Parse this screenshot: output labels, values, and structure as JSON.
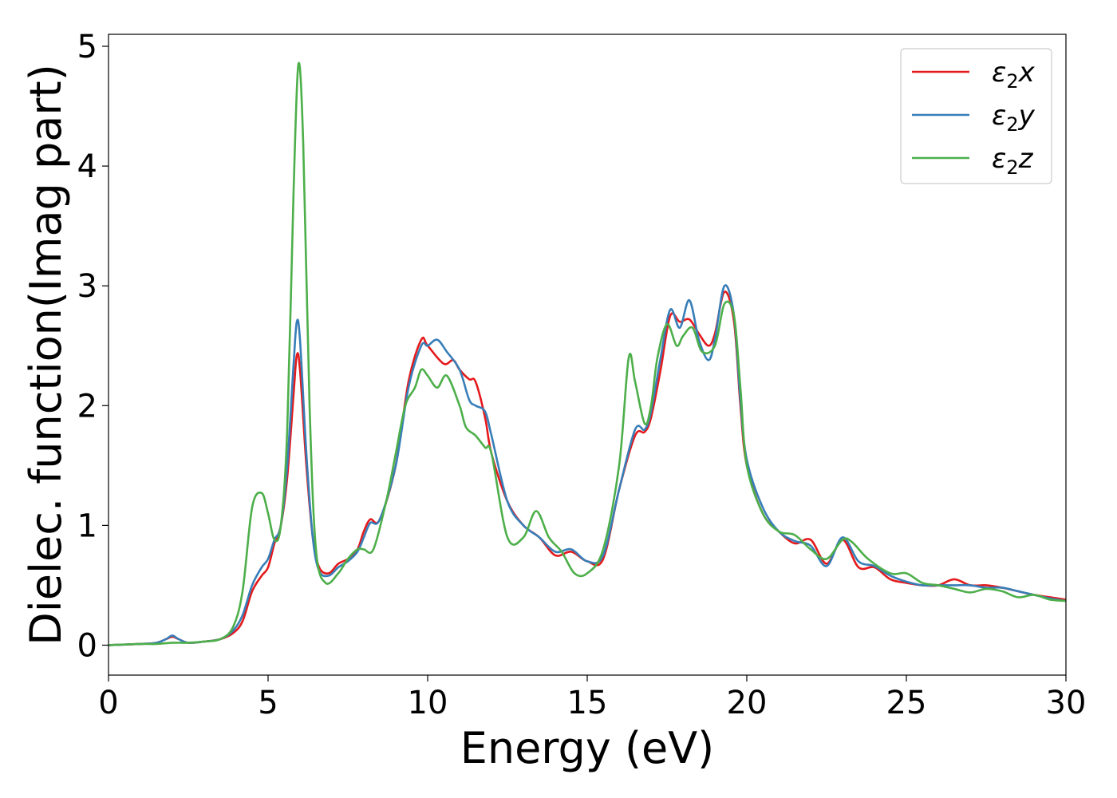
{
  "chart_data": {
    "type": "line",
    "title": "",
    "xlabel": "Energy (eV)",
    "ylabel": "Dielec. function(Imag part)",
    "xlim": [
      0,
      30
    ],
    "ylim": [
      -0.25,
      5.1
    ],
    "xticks": [
      0,
      5,
      10,
      15,
      20,
      25,
      30
    ],
    "yticks": [
      0,
      1,
      2,
      3,
      4,
      5
    ],
    "grid": false,
    "legend_position": "top-right",
    "series": [
      {
        "name": "ε2x",
        "legend_base": "ε",
        "legend_sub": "2",
        "legend_suffix": "x",
        "color": "#e41a1c",
        "points": [
          [
            0,
            0
          ],
          [
            1,
            0.01
          ],
          [
            1.5,
            0.02
          ],
          [
            1.8,
            0.05
          ],
          [
            2,
            0.07
          ],
          [
            2.2,
            0.05
          ],
          [
            2.5,
            0.02
          ],
          [
            3,
            0.03
          ],
          [
            3.5,
            0.05
          ],
          [
            3.9,
            0.1
          ],
          [
            4.2,
            0.2
          ],
          [
            4.5,
            0.45
          ],
          [
            4.8,
            0.58
          ],
          [
            5.0,
            0.65
          ],
          [
            5.2,
            0.85
          ],
          [
            5.4,
            1.0
          ],
          [
            5.6,
            1.4
          ],
          [
            5.8,
            2.1
          ],
          [
            5.9,
            2.42
          ],
          [
            6.0,
            2.3
          ],
          [
            6.2,
            1.5
          ],
          [
            6.4,
            0.9
          ],
          [
            6.6,
            0.65
          ],
          [
            6.9,
            0.6
          ],
          [
            7.2,
            0.68
          ],
          [
            7.5,
            0.72
          ],
          [
            7.8,
            0.8
          ],
          [
            8.0,
            0.95
          ],
          [
            8.2,
            1.05
          ],
          [
            8.5,
            1.05
          ],
          [
            9.0,
            1.5
          ],
          [
            9.4,
            2.2
          ],
          [
            9.8,
            2.55
          ],
          [
            10.0,
            2.5
          ],
          [
            10.5,
            2.35
          ],
          [
            10.8,
            2.38
          ],
          [
            11.0,
            2.3
          ],
          [
            11.3,
            2.22
          ],
          [
            11.5,
            2.2
          ],
          [
            11.8,
            1.9
          ],
          [
            12.0,
            1.6
          ],
          [
            12.5,
            1.2
          ],
          [
            13.0,
            1.0
          ],
          [
            13.5,
            0.9
          ],
          [
            14.0,
            0.75
          ],
          [
            14.5,
            0.78
          ],
          [
            15.0,
            0.7
          ],
          [
            15.5,
            0.72
          ],
          [
            16.0,
            1.3
          ],
          [
            16.5,
            1.75
          ],
          [
            16.8,
            1.78
          ],
          [
            17.0,
            1.9
          ],
          [
            17.3,
            2.3
          ],
          [
            17.6,
            2.75
          ],
          [
            17.9,
            2.7
          ],
          [
            18.2,
            2.72
          ],
          [
            18.5,
            2.6
          ],
          [
            18.8,
            2.5
          ],
          [
            19.0,
            2.6
          ],
          [
            19.3,
            2.95
          ],
          [
            19.6,
            2.7
          ],
          [
            19.8,
            2.0
          ],
          [
            20.0,
            1.5
          ],
          [
            20.5,
            1.1
          ],
          [
            21.0,
            0.95
          ],
          [
            21.5,
            0.85
          ],
          [
            22.0,
            0.88
          ],
          [
            22.5,
            0.68
          ],
          [
            23.0,
            0.88
          ],
          [
            23.5,
            0.65
          ],
          [
            24.0,
            0.65
          ],
          [
            24.5,
            0.55
          ],
          [
            25.0,
            0.52
          ],
          [
            25.5,
            0.5
          ],
          [
            26.0,
            0.5
          ],
          [
            26.5,
            0.55
          ],
          [
            27.0,
            0.5
          ],
          [
            27.5,
            0.5
          ],
          [
            28.0,
            0.48
          ],
          [
            28.5,
            0.45
          ],
          [
            29.0,
            0.42
          ],
          [
            29.5,
            0.4
          ],
          [
            30.0,
            0.38
          ]
        ]
      },
      {
        "name": "ε2y",
        "legend_base": "ε",
        "legend_sub": "2",
        "legend_suffix": "y",
        "color": "#377eb8",
        "points": [
          [
            0,
            0
          ],
          [
            1,
            0.01
          ],
          [
            1.5,
            0.02
          ],
          [
            1.8,
            0.05
          ],
          [
            2,
            0.08
          ],
          [
            2.2,
            0.05
          ],
          [
            2.5,
            0.02
          ],
          [
            3,
            0.03
          ],
          [
            3.5,
            0.05
          ],
          [
            3.9,
            0.12
          ],
          [
            4.2,
            0.25
          ],
          [
            4.5,
            0.5
          ],
          [
            4.8,
            0.65
          ],
          [
            5.0,
            0.72
          ],
          [
            5.2,
            0.88
          ],
          [
            5.4,
            1.0
          ],
          [
            5.6,
            1.5
          ],
          [
            5.8,
            2.35
          ],
          [
            5.9,
            2.7
          ],
          [
            6.0,
            2.55
          ],
          [
            6.2,
            1.6
          ],
          [
            6.4,
            0.9
          ],
          [
            6.6,
            0.62
          ],
          [
            6.9,
            0.58
          ],
          [
            7.2,
            0.65
          ],
          [
            7.5,
            0.7
          ],
          [
            7.8,
            0.78
          ],
          [
            8.0,
            0.9
          ],
          [
            8.2,
            1.02
          ],
          [
            8.5,
            1.05
          ],
          [
            9.0,
            1.5
          ],
          [
            9.4,
            2.15
          ],
          [
            9.8,
            2.5
          ],
          [
            10.0,
            2.5
          ],
          [
            10.3,
            2.55
          ],
          [
            10.6,
            2.45
          ],
          [
            11.0,
            2.3
          ],
          [
            11.3,
            2.05
          ],
          [
            11.5,
            2.0
          ],
          [
            11.8,
            1.95
          ],
          [
            12.0,
            1.75
          ],
          [
            12.5,
            1.2
          ],
          [
            13.0,
            1.0
          ],
          [
            13.5,
            0.9
          ],
          [
            14.0,
            0.78
          ],
          [
            14.5,
            0.8
          ],
          [
            15.0,
            0.7
          ],
          [
            15.5,
            0.75
          ],
          [
            16.0,
            1.3
          ],
          [
            16.5,
            1.8
          ],
          [
            16.8,
            1.8
          ],
          [
            17.0,
            1.95
          ],
          [
            17.3,
            2.4
          ],
          [
            17.6,
            2.8
          ],
          [
            17.9,
            2.65
          ],
          [
            18.2,
            2.88
          ],
          [
            18.5,
            2.55
          ],
          [
            18.8,
            2.38
          ],
          [
            19.0,
            2.55
          ],
          [
            19.3,
            3.0
          ],
          [
            19.6,
            2.75
          ],
          [
            19.8,
            2.05
          ],
          [
            20.0,
            1.55
          ],
          [
            20.5,
            1.15
          ],
          [
            21.0,
            0.95
          ],
          [
            21.5,
            0.87
          ],
          [
            22.0,
            0.83
          ],
          [
            22.5,
            0.66
          ],
          [
            23.0,
            0.9
          ],
          [
            23.5,
            0.7
          ],
          [
            24.0,
            0.66
          ],
          [
            24.5,
            0.58
          ],
          [
            25.0,
            0.53
          ],
          [
            25.5,
            0.5
          ],
          [
            26.0,
            0.5
          ],
          [
            26.5,
            0.5
          ],
          [
            27.0,
            0.5
          ],
          [
            27.5,
            0.48
          ],
          [
            28.0,
            0.48
          ],
          [
            28.5,
            0.45
          ],
          [
            29.0,
            0.42
          ],
          [
            29.5,
            0.39
          ],
          [
            30.0,
            0.37
          ]
        ]
      },
      {
        "name": "ε2z",
        "legend_base": "ε",
        "legend_sub": "2",
        "legend_suffix": "z",
        "color": "#4daf4a",
        "points": [
          [
            0,
            0
          ],
          [
            1,
            0.01
          ],
          [
            1.5,
            0.01
          ],
          [
            2,
            0.02
          ],
          [
            2.5,
            0.02
          ],
          [
            3,
            0.03
          ],
          [
            3.5,
            0.05
          ],
          [
            3.9,
            0.15
          ],
          [
            4.2,
            0.45
          ],
          [
            4.5,
            1.15
          ],
          [
            4.8,
            1.27
          ],
          [
            5.0,
            1.1
          ],
          [
            5.2,
            0.88
          ],
          [
            5.4,
            1.0
          ],
          [
            5.6,
            1.8
          ],
          [
            5.8,
            3.8
          ],
          [
            5.95,
            4.85
          ],
          [
            6.1,
            4.2
          ],
          [
            6.3,
            2.0
          ],
          [
            6.5,
            0.8
          ],
          [
            6.8,
            0.52
          ],
          [
            7.2,
            0.6
          ],
          [
            7.5,
            0.72
          ],
          [
            7.8,
            0.8
          ],
          [
            8.0,
            0.8
          ],
          [
            8.3,
            0.8
          ],
          [
            8.7,
            1.2
          ],
          [
            9.0,
            1.6
          ],
          [
            9.3,
            2.0
          ],
          [
            9.6,
            2.15
          ],
          [
            9.8,
            2.3
          ],
          [
            10.0,
            2.25
          ],
          [
            10.3,
            2.15
          ],
          [
            10.6,
            2.25
          ],
          [
            11.0,
            2.0
          ],
          [
            11.2,
            1.82
          ],
          [
            11.5,
            1.75
          ],
          [
            11.8,
            1.65
          ],
          [
            12.0,
            1.6
          ],
          [
            12.5,
            0.9
          ],
          [
            13.0,
            0.9
          ],
          [
            13.4,
            1.12
          ],
          [
            13.8,
            0.9
          ],
          [
            14.2,
            0.78
          ],
          [
            14.6,
            0.6
          ],
          [
            15.0,
            0.6
          ],
          [
            15.5,
            0.8
          ],
          [
            16.0,
            1.5
          ],
          [
            16.3,
            2.4
          ],
          [
            16.5,
            2.2
          ],
          [
            16.8,
            1.85
          ],
          [
            17.0,
            2.0
          ],
          [
            17.2,
            2.4
          ],
          [
            17.5,
            2.68
          ],
          [
            17.8,
            2.5
          ],
          [
            18.0,
            2.58
          ],
          [
            18.3,
            2.65
          ],
          [
            18.6,
            2.45
          ],
          [
            19.0,
            2.5
          ],
          [
            19.3,
            2.85
          ],
          [
            19.6,
            2.75
          ],
          [
            19.8,
            2.15
          ],
          [
            20.0,
            1.5
          ],
          [
            20.5,
            1.1
          ],
          [
            21.0,
            0.95
          ],
          [
            21.5,
            0.92
          ],
          [
            22.0,
            0.8
          ],
          [
            22.5,
            0.72
          ],
          [
            23.0,
            0.88
          ],
          [
            23.3,
            0.86
          ],
          [
            23.8,
            0.72
          ],
          [
            24.5,
            0.6
          ],
          [
            25.0,
            0.6
          ],
          [
            25.5,
            0.52
          ],
          [
            26.0,
            0.5
          ],
          [
            26.5,
            0.47
          ],
          [
            27.0,
            0.44
          ],
          [
            27.5,
            0.47
          ],
          [
            28.0,
            0.45
          ],
          [
            28.5,
            0.4
          ],
          [
            29.0,
            0.42
          ],
          [
            29.5,
            0.38
          ],
          [
            30.0,
            0.37
          ]
        ]
      }
    ]
  }
}
